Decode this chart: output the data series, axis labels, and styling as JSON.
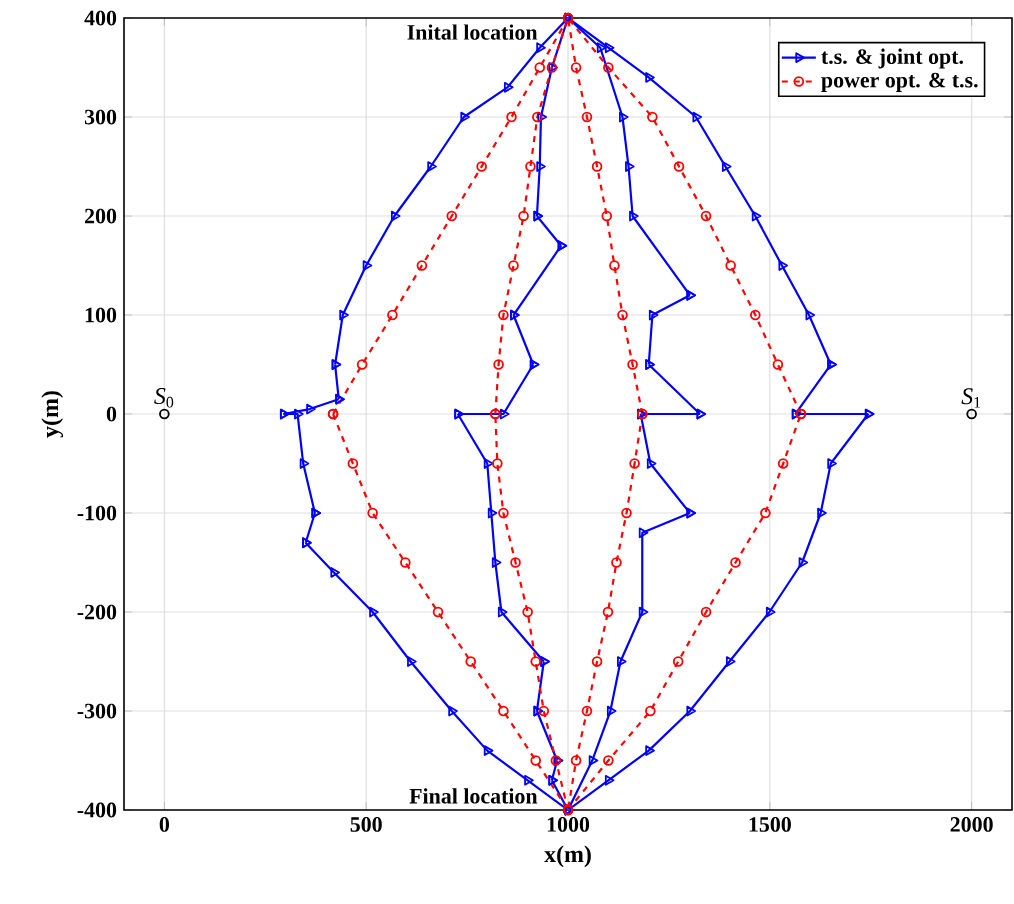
{
  "chart_data": {
    "type": "line",
    "xlabel": "x(m)",
    "ylabel": "y(m)",
    "xlim": [
      -100,
      2100
    ],
    "ylim": [
      -400,
      400
    ],
    "xticks": [
      0,
      500,
      1000,
      1500,
      2000
    ],
    "yticks": [
      -400,
      -300,
      -200,
      -100,
      0,
      100,
      200,
      300,
      400
    ],
    "grid": true,
    "legend": "top right",
    "annotations": [
      {
        "text": "Inital location",
        "x": 1000,
        "y": 400
      },
      {
        "text": "Final location",
        "x": 1000,
        "y": -400
      },
      {
        "text": "*S*$_{0}$",
        "x": 0,
        "y": 0
      },
      {
        "text": "*S*$_{1}$",
        "x": 2000,
        "y": 0
      }
    ],
    "series": [
      {
        "name": "t.s. & joint opt.",
        "color": "#0000ff",
        "marker": "triangle",
        "line_style": "solid",
        "x": [
          1000,
          930,
          850,
          742,
          660,
          570,
          500,
          442,
          423,
          432,
          360,
          295,
          330,
          344,
          373,
          350,
          420,
          516,
          610,
          712,
          800,
          900,
          1000,
          960,
          973,
          923,
          940,
          835,
          820,
          810,
          800,
          727,
          840,
          914,
          865,
          983,
          923,
          930,
          933,
          960,
          1000,
          1080,
          1135,
          1150,
          1160,
          1302,
          1209,
          1200,
          1327,
          1180,
          1204,
          1302,
          1184,
          1184,
          1130,
          1105,
          1060,
          1000,
          1100,
          1200,
          1302,
          1400,
          1499,
          1580,
          1626,
          1651,
          1744,
          1563,
          1651,
          1597,
          1530,
          1464,
          1390,
          1317,
          1200,
          1100,
          1000
        ],
        "values": [
          400,
          370,
          330,
          300,
          250,
          200,
          150,
          100,
          50,
          15,
          5,
          0,
          0,
          -50,
          -100,
          -130,
          -160,
          -200,
          -250,
          -300,
          -340,
          -370,
          -400,
          -370,
          -350,
          -300,
          -250,
          -200,
          -150,
          -100,
          -50,
          0,
          0,
          50,
          100,
          170,
          200,
          250,
          300,
          350,
          400,
          370,
          300,
          250,
          200,
          120,
          100,
          50,
          0,
          0,
          -50,
          -100,
          -120,
          -200,
          -250,
          -300,
          -350,
          -400,
          -370,
          -340,
          -300,
          -250,
          -200,
          -150,
          -100,
          -50,
          0,
          0,
          50,
          100,
          150,
          200,
          250,
          300,
          340,
          370,
          400
        ]
      },
      {
        "name": "power opt. & t.s.",
        "color": "#ff0000",
        "marker": "circle",
        "line_style": "dashed",
        "x": [
          1000,
          930,
          860,
          786,
          712,
          638,
          565,
          490,
          418,
          467,
          516,
          597,
          678,
          759,
          840,
          920,
          1000,
          970,
          940,
          920,
          900,
          870,
          840,
          825,
          820,
          828,
          840,
          865,
          890,
          907,
          924,
          960,
          1000,
          1020,
          1047,
          1072,
          1096,
          1115,
          1135,
          1160,
          1184,
          1165,
          1145,
          1120,
          1099,
          1072,
          1047,
          1020,
          1000,
          1100,
          1204,
          1273,
          1342,
          1415,
          1489,
          1533,
          1577,
          1520,
          1464,
          1403,
          1342,
          1275,
          1209,
          1100,
          1000
        ],
        "values": [
          400,
          350,
          300,
          250,
          200,
          150,
          100,
          50,
          0,
          -50,
          -100,
          -150,
          -200,
          -250,
          -300,
          -350,
          -400,
          -350,
          -300,
          -250,
          -200,
          -150,
          -100,
          -50,
          0,
          50,
          100,
          150,
          200,
          250,
          300,
          350,
          400,
          350,
          300,
          250,
          200,
          150,
          100,
          50,
          0,
          -50,
          -100,
          -150,
          -200,
          -250,
          -300,
          -350,
          -400,
          -350,
          -300,
          -250,
          -200,
          -150,
          -100,
          -50,
          0,
          50,
          100,
          150,
          200,
          250,
          300,
          350,
          400
        ]
      },
      {
        "type": "scatter",
        "color": "#000000",
        "marker": "circle",
        "x": [
          0,
          2000
        ],
        "values": [
          0,
          0
        ]
      }
    ]
  }
}
